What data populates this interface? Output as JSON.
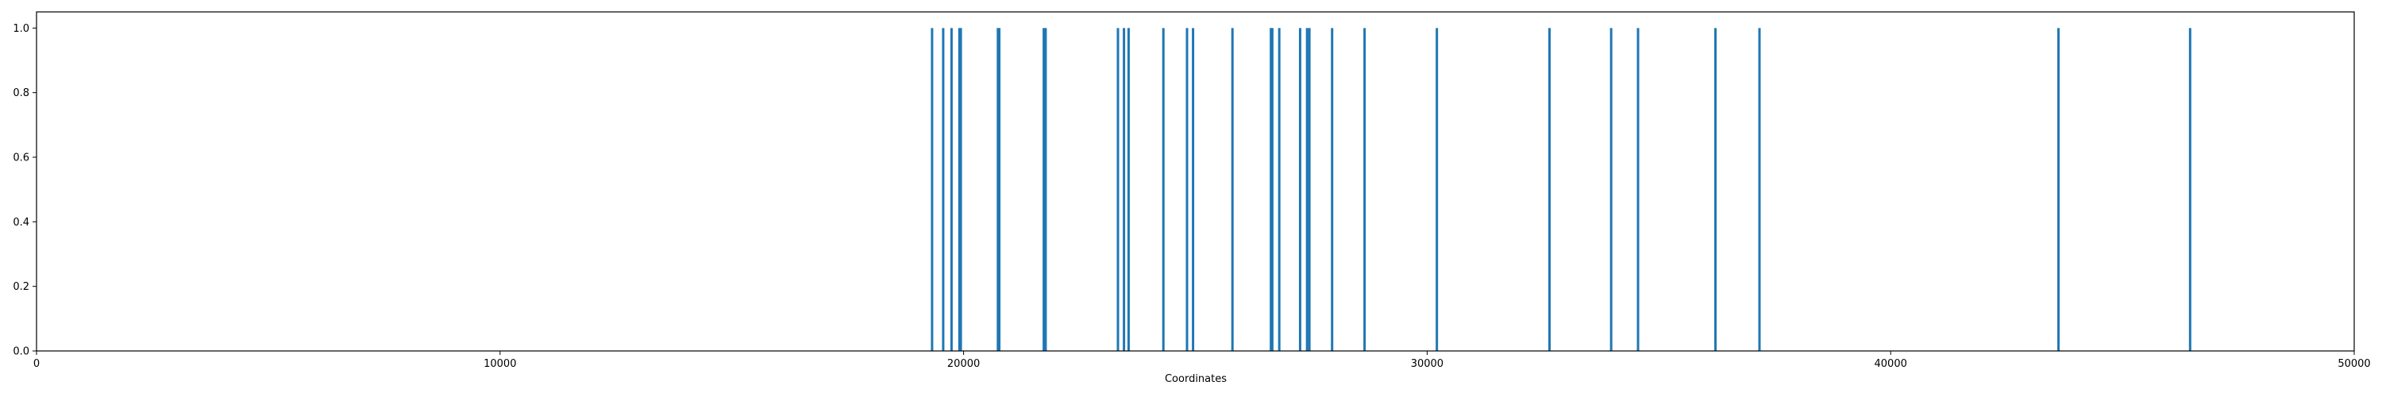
{
  "chart_data": {
    "type": "bar",
    "title": "",
    "xlabel": "Coordinates",
    "ylabel": "",
    "xlim": [
      0,
      50000
    ],
    "ylim": [
      0,
      1.05
    ],
    "x_ticks": [
      0,
      10000,
      20000,
      30000,
      40000,
      50000
    ],
    "x_tick_labels": [
      "0",
      "10000",
      "20000",
      "30000",
      "40000",
      "50000"
    ],
    "y_ticks": [
      0.0,
      0.2,
      0.4,
      0.6,
      0.8,
      1.0
    ],
    "y_tick_labels": [
      "0.0",
      "0.2",
      "0.4",
      "0.6",
      "0.8",
      "1.0"
    ],
    "grid": false,
    "legend": "none",
    "bar_color": "#1f77b4",
    "x": [
      19320,
      19560,
      19740,
      19910,
      19940,
      20740,
      20770,
      21730,
      21770,
      23330,
      23460,
      23560,
      24310,
      24820,
      24950,
      25800,
      26630,
      26660,
      26810,
      27260,
      27410,
      27460,
      27950,
      28650,
      30210,
      32640,
      33970,
      34550,
      36220,
      37170,
      43620,
      46460
    ],
    "values": [
      1,
      1,
      1,
      1,
      1,
      1,
      1,
      1,
      1,
      1,
      1,
      1,
      1,
      1,
      1,
      1,
      1,
      1,
      1,
      1,
      1,
      1,
      1,
      1,
      1,
      1,
      1,
      1,
      1,
      1,
      1,
      1
    ]
  }
}
